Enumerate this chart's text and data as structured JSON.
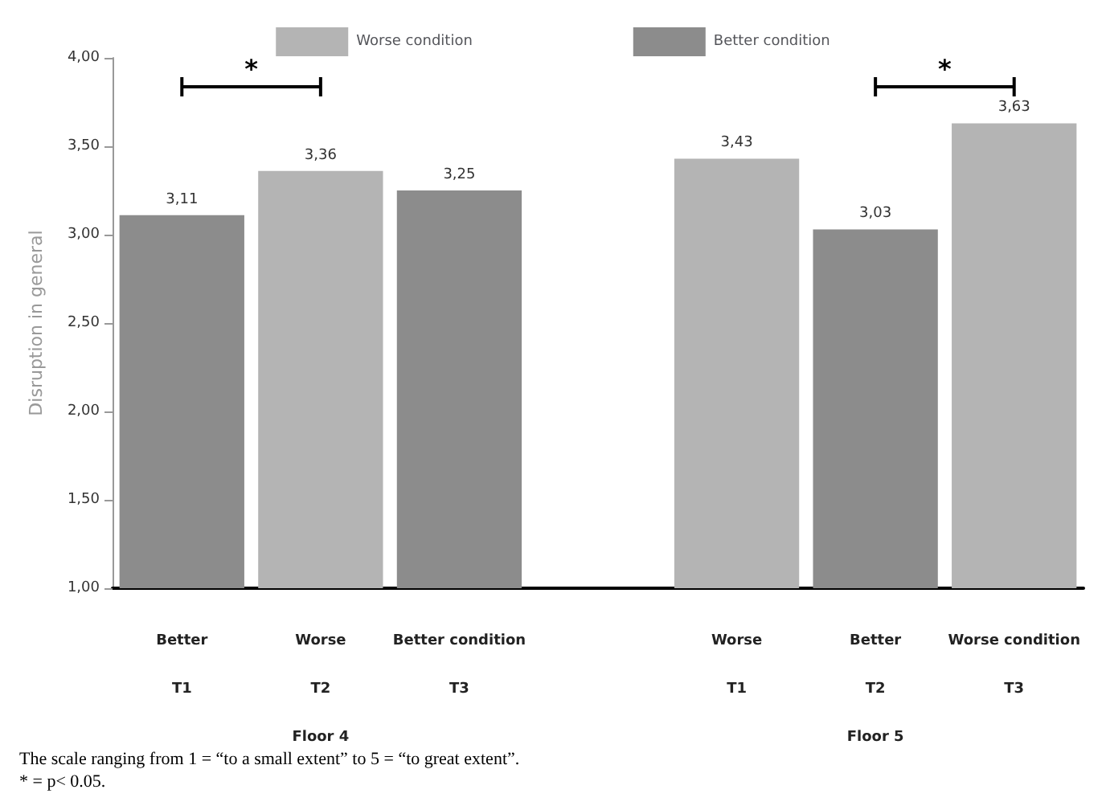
{
  "chart_data": {
    "type": "bar",
    "ylabel": "Disruption in general",
    "categories": [
      "Better\nT1",
      "Worse\nT2\nFloor 4",
      "Better condition\nT3",
      null,
      "Worse\nT1",
      "Better\nT2\nFloor 5",
      "Worse condition\nT3"
    ],
    "series": [
      {
        "name": "Worse condition",
        "color": "#b4b4b4",
        "values": [
          null,
          3.36,
          null,
          null,
          3.43,
          null,
          3.63
        ],
        "value_labels": [
          null,
          "3,36",
          null,
          null,
          "3,43",
          null,
          "3,63"
        ]
      },
      {
        "name": "Better condition",
        "color": "#8c8c8c",
        "values": [
          3.11,
          null,
          3.25,
          null,
          null,
          3.03,
          null
        ],
        "value_labels": [
          "3,11",
          null,
          "3,25",
          null,
          null,
          "3,03",
          null
        ]
      }
    ],
    "ylim": [
      1,
      4
    ],
    "yticks": [
      {
        "value": 1,
        "label": "1,00"
      },
      {
        "value": 1.5,
        "label": "1,50"
      },
      {
        "value": 2,
        "label": "2,00"
      },
      {
        "value": 2.5,
        "label": "2,50"
      },
      {
        "value": 3,
        "label": "3,00"
      },
      {
        "value": 3.5,
        "label": "3,50"
      },
      {
        "value": 4,
        "label": "4,00"
      }
    ],
    "grid": false,
    "legend": "top",
    "annotations": [
      "*",
      "*",
      "The scale ranging from 1 = “to a small extent” to 5 = “to great extent”.",
      "* = p< 0.05."
    ]
  }
}
